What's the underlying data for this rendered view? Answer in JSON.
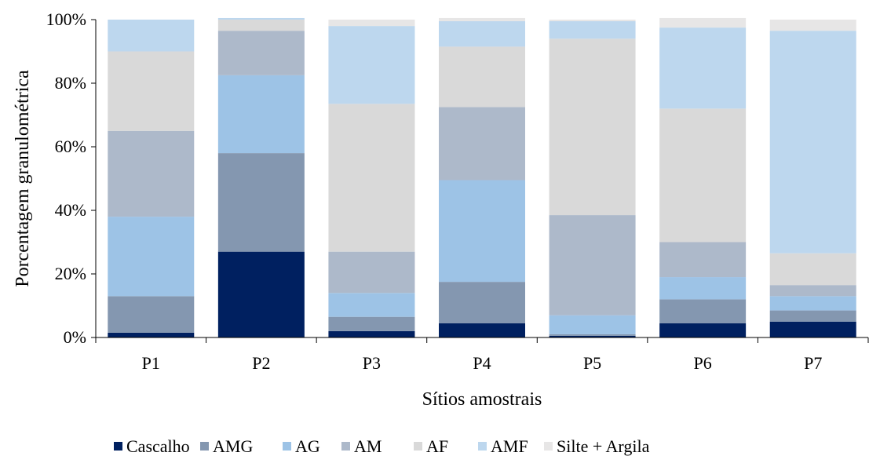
{
  "chart_data": {
    "type": "bar",
    "stacked": true,
    "percent": true,
    "categories": [
      "P1",
      "P2",
      "P3",
      "P4",
      "P5",
      "P6",
      "P7"
    ],
    "series": [
      {
        "name": "Cascalho",
        "color": "#002060",
        "values": [
          1.5,
          27,
          2,
          4.5,
          0.5,
          4.5,
          5
        ]
      },
      {
        "name": "AMG",
        "color": "#8497b0",
        "values": [
          11.5,
          31,
          4.5,
          13,
          0.5,
          7.5,
          3.5
        ]
      },
      {
        "name": "AG",
        "color": "#9dc3e6",
        "values": [
          25,
          24.5,
          7.5,
          32,
          6,
          7,
          4.5
        ]
      },
      {
        "name": "AM",
        "color": "#adb9ca",
        "values": [
          27,
          14,
          13,
          23,
          31.5,
          11,
          3.5
        ]
      },
      {
        "name": "AF",
        "color": "#d9d9d9",
        "values": [
          25,
          3.5,
          46.5,
          19,
          55.5,
          42,
          10
        ]
      },
      {
        "name": "AMF",
        "color": "#bdd7ee",
        "values": [
          10,
          0.5,
          24.5,
          8,
          5.5,
          25.5,
          70
        ]
      },
      {
        "name": "Silte + Argila",
        "color": "#e7e6e6",
        "values": [
          0,
          0,
          2,
          1,
          0.5,
          3,
          3.5
        ]
      }
    ],
    "xlabel": "Sítios amostrais",
    "ylabel": "Porcentagem  granulométrica",
    "ylim": [
      0,
      100
    ],
    "yticks": [
      "0%",
      "20%",
      "40%",
      "60%",
      "80%",
      "100%"
    ],
    "grid": false,
    "legend_position": "bottom"
  }
}
